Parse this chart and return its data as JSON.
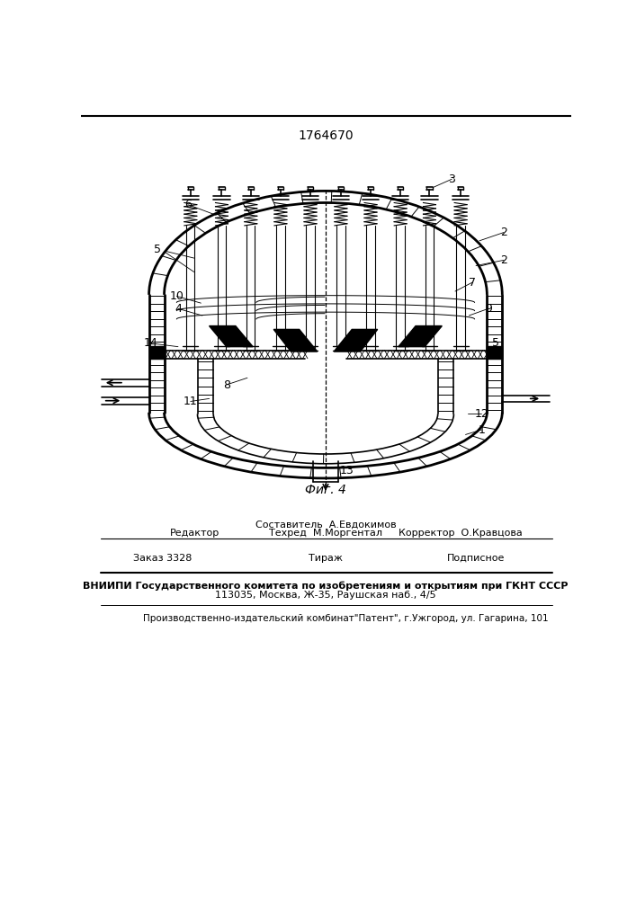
{
  "patent_number": "1764670",
  "fig_label": "Фиг. 4",
  "bg_color": "#ffffff",
  "line_color": "#000000",
  "sostavitel": "Составитель  А.Евдокимов",
  "tehred": "Техред  М.Моргентал",
  "korrektor": "Корректор  О.Кравцова",
  "redaktor": "Редактор",
  "zakaz": "Заказ 3328",
  "tirazh": "Тираж",
  "podpisnoe": "Подписное",
  "vniipи": "ВНИИПИ Государственного комитета по изобретениям и открытиям при ГКНТ СССР",
  "address": "113035, Москва, Ж-35, Раушская наб., 4/5",
  "proizv": "Производственно-издательский комбинат\"Патент\", г.Ужгород, ул. Гагарина, 101"
}
